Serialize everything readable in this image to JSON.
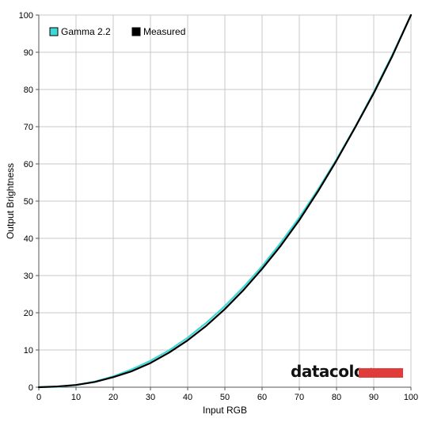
{
  "chart_data": {
    "type": "line",
    "xlabel": "Input RGB",
    "ylabel": "Output Brightness",
    "xlim": [
      0,
      100
    ],
    "ylim": [
      0,
      100
    ],
    "xticks": [
      0,
      10,
      20,
      30,
      40,
      50,
      60,
      70,
      80,
      90,
      100
    ],
    "yticks": [
      0,
      10,
      20,
      30,
      40,
      50,
      60,
      70,
      80,
      90,
      100
    ],
    "grid": true,
    "legend_position": "top-left",
    "series": [
      {
        "name": "Gamma 2.2",
        "color": "#3fd6d6",
        "x": [
          0,
          5,
          10,
          15,
          20,
          25,
          30,
          35,
          40,
          45,
          50,
          55,
          60,
          65,
          70,
          75,
          80,
          85,
          90,
          95,
          100
        ],
        "y": [
          0,
          0.1,
          0.6,
          1.5,
          2.9,
          4.8,
          7.1,
          9.9,
          13.3,
          17.3,
          21.8,
          26.9,
          32.5,
          38.8,
          45.6,
          53.1,
          61.2,
          69.9,
          79.3,
          89.3,
          100
        ]
      },
      {
        "name": "Measured",
        "color": "#000000",
        "x": [
          0,
          5,
          10,
          15,
          20,
          25,
          30,
          35,
          40,
          45,
          50,
          55,
          60,
          65,
          70,
          75,
          80,
          85,
          90,
          95,
          100
        ],
        "y": [
          0,
          0.2,
          0.6,
          1.4,
          2.7,
          4.3,
          6.5,
          9.3,
          12.6,
          16.5,
          21.0,
          26.1,
          31.8,
          38.0,
          44.9,
          52.6,
          60.9,
          69.8,
          79.0,
          89.0,
          100
        ]
      }
    ]
  },
  "logo": {
    "text": "datacolor",
    "bar_color": "#e03c3c"
  }
}
